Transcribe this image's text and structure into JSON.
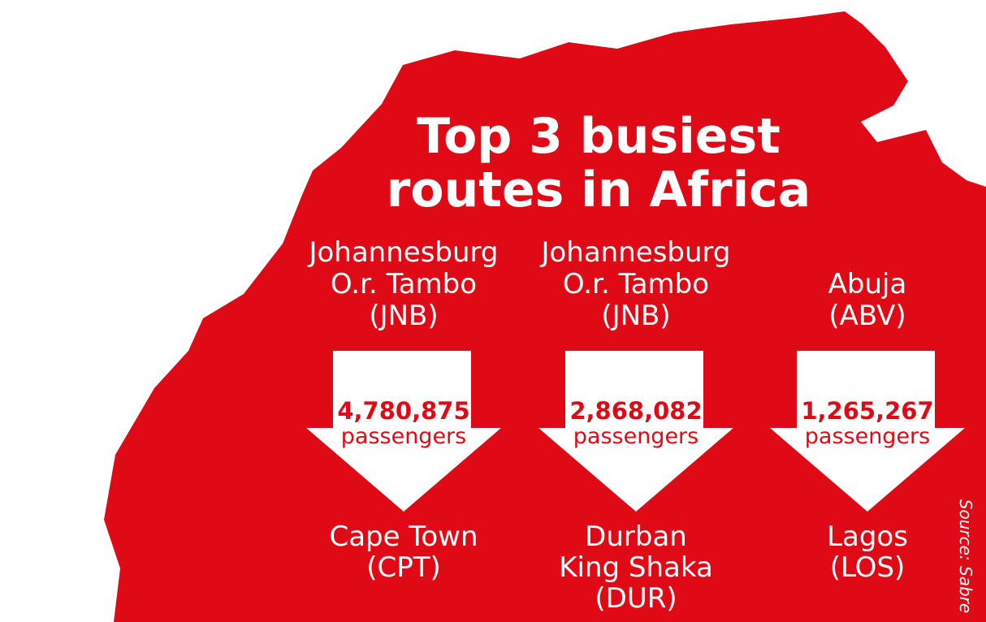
{
  "header": {
    "title": [
      "Top 3 busiest",
      "routes in Africa"
    ]
  },
  "routes": [
    {
      "from": [
        "Johannesburg",
        "O.r. Tambo",
        "(JNB)"
      ],
      "passengers": "4,780,875",
      "passengers_label": "passengers",
      "to": [
        "Cape Town",
        "(CPT)"
      ]
    },
    {
      "from": [
        "Johannesburg",
        "O.r. Tambo",
        "(JNB)"
      ],
      "passengers": "2,868,082",
      "passengers_label": "passengers",
      "to": [
        "Durban",
        "King Shaka",
        "(DUR)"
      ]
    },
    {
      "from": [
        "Abuja",
        "(ABV)"
      ],
      "passengers": "1,265,267",
      "passengers_label": "passengers",
      "to": [
        "Lagos",
        "(LOS)"
      ]
    }
  ],
  "source": "Source: Sabre"
}
